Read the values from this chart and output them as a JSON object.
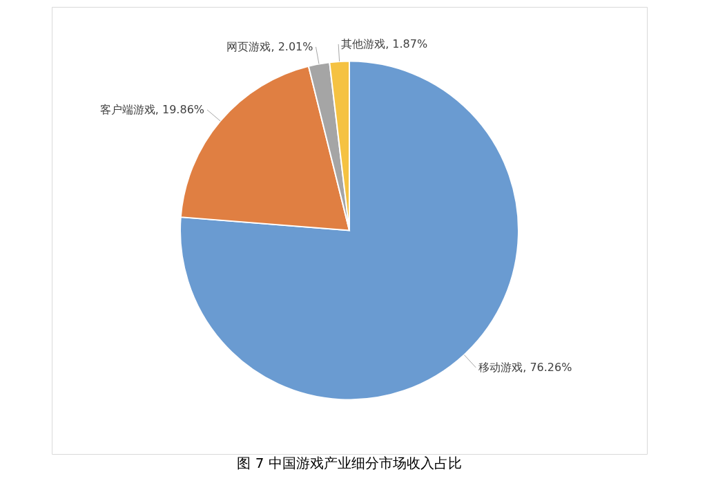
{
  "chart_data": {
    "type": "pie",
    "title": "图 7  中国游戏产业细分市场收入占比",
    "categories": [
      "移动游戏",
      "客户端游戏",
      "网页游戏",
      "其他游戏"
    ],
    "values": [
      76.26,
      19.86,
      2.01,
      1.87
    ],
    "colors": [
      "#6a9bd1",
      "#e07f42",
      "#a5a5a5",
      "#f5c242"
    ],
    "value_labels": [
      "76.26%",
      "19.86%",
      "2.01%",
      "1.87%"
    ],
    "legend": false
  }
}
